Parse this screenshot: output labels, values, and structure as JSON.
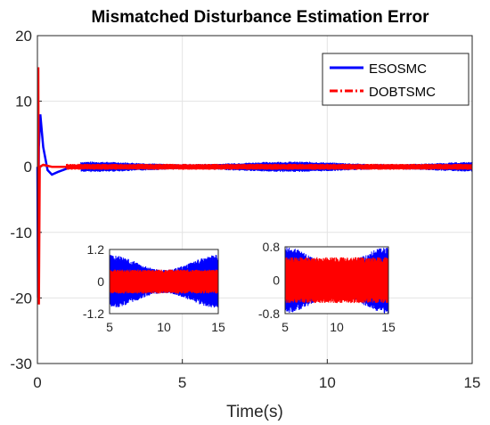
{
  "chart_data": {
    "type": "line",
    "title": "Mismatched Disturbance Estimation Error",
    "xlabel": "Time(s)",
    "ylabel": "",
    "xlim": [
      0,
      15
    ],
    "ylim": [
      -30,
      20
    ],
    "xticks": [
      "0",
      "5",
      "10",
      "15"
    ],
    "yticks": [
      "20",
      "10",
      "0",
      "-10",
      "-20",
      "-30"
    ],
    "grid": true,
    "legend_position": "top-right",
    "series": [
      {
        "name": "ESOSMC",
        "color": "#0000ff",
        "style": "solid",
        "points": [
          [
            0,
            0
          ],
          [
            0.02,
            -20
          ],
          [
            0.05,
            3
          ],
          [
            0.1,
            8
          ],
          [
            0.2,
            3
          ],
          [
            0.35,
            -0.5
          ],
          [
            0.5,
            -1.2
          ],
          [
            0.7,
            -0.8
          ],
          [
            1.0,
            -0.3
          ],
          [
            1.5,
            0.2
          ]
        ],
        "steady_oscillation_amplitude": 0.8
      },
      {
        "name": "DOBTSMC",
        "color": "#ff0000",
        "style": "dash-dot",
        "points": [
          [
            0,
            15
          ],
          [
            0.03,
            15
          ],
          [
            0.05,
            -21
          ],
          [
            0.08,
            0
          ],
          [
            0.2,
            0.3
          ],
          [
            0.5,
            0
          ],
          [
            1.0,
            0
          ]
        ],
        "steady_oscillation_amplitude": 0.45
      }
    ],
    "insets": [
      {
        "xlim": [
          5,
          15
        ],
        "ylim": [
          -1.2,
          1.2
        ],
        "xticks": [
          "5",
          "10",
          "15"
        ],
        "yticks": [
          "1.2",
          "0",
          "-1.2"
        ],
        "blue_amplitude": 1.0,
        "red_amplitude": 0.45
      },
      {
        "xlim": [
          5,
          15
        ],
        "ylim": [
          -0.8,
          0.8
        ],
        "xticks": [
          "5",
          "10",
          "15"
        ],
        "yticks": [
          "0.8",
          "0",
          "-0.8"
        ],
        "blue_amplitude": 0.8,
        "red_amplitude": 0.55
      }
    ]
  }
}
